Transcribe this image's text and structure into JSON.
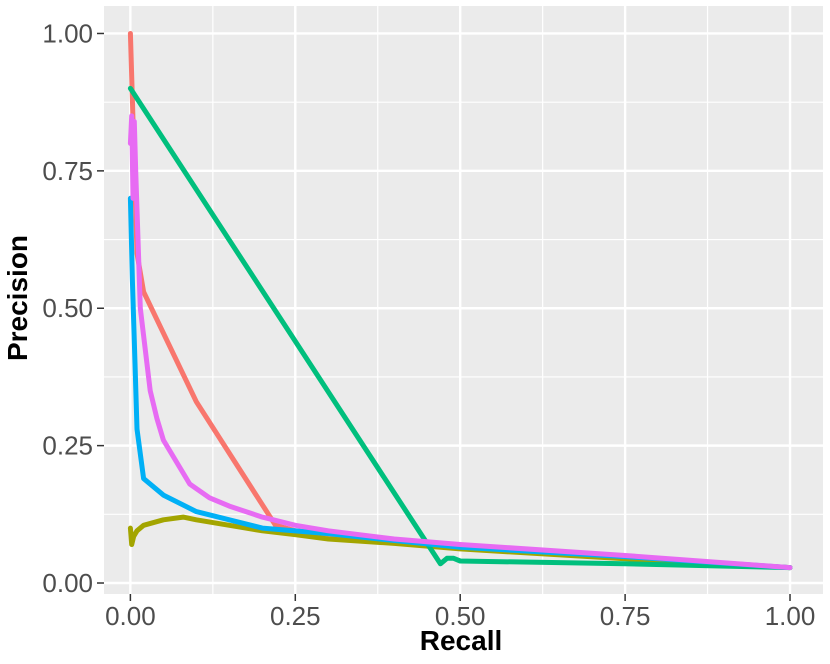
{
  "chart_data": {
    "type": "line",
    "title": "",
    "xlabel": "Recall",
    "ylabel": "Precision",
    "xlim": [
      -0.04,
      1.05
    ],
    "ylim": [
      -0.02,
      1.05
    ],
    "grid": true,
    "legend": "none",
    "panel_background": "#ebebeb",
    "grid_color": "#ffffff",
    "x_ticks": [
      {
        "value": 0,
        "label": "0.00"
      },
      {
        "value": 0.25,
        "label": "0.25"
      },
      {
        "value": 0.5,
        "label": "0.50"
      },
      {
        "value": 0.75,
        "label": "0.75"
      },
      {
        "value": 1.0,
        "label": "1.00"
      }
    ],
    "y_ticks": [
      {
        "value": 0,
        "label": "0.00"
      },
      {
        "value": 0.25,
        "label": "0.25"
      },
      {
        "value": 0.5,
        "label": "0.50"
      },
      {
        "value": 0.75,
        "label": "0.75"
      },
      {
        "value": 1.0,
        "label": "1.00"
      }
    ],
    "x_minor": [
      0.125,
      0.375,
      0.625,
      0.875
    ],
    "y_minor": [
      0.125,
      0.375,
      0.625,
      0.875
    ],
    "series": [
      {
        "color": "#f8766d",
        "x": [
          0.0,
          0.005,
          0.01,
          0.02,
          0.1,
          0.22,
          0.25,
          0.5,
          0.75,
          1.0
        ],
        "y": [
          1.0,
          0.8,
          0.6,
          0.53,
          0.33,
          0.105,
          0.095,
          0.065,
          0.045,
          0.028
        ]
      },
      {
        "color": "#a3a500",
        "x": [
          0.0,
          0.002,
          0.005,
          0.01,
          0.02,
          0.05,
          0.08,
          0.1,
          0.15,
          0.2,
          0.25,
          0.3,
          0.4,
          0.5,
          0.75,
          1.0
        ],
        "y": [
          0.1,
          0.07,
          0.085,
          0.095,
          0.105,
          0.115,
          0.12,
          0.115,
          0.105,
          0.095,
          0.088,
          0.08,
          0.072,
          0.062,
          0.044,
          0.028
        ]
      },
      {
        "color": "#00bf7d",
        "x": [
          0.0,
          0.47,
          0.48,
          0.49,
          0.5,
          0.75,
          1.0
        ],
        "y": [
          0.9,
          0.035,
          0.045,
          0.045,
          0.04,
          0.035,
          0.028
        ]
      },
      {
        "color": "#00b0f6",
        "x": [
          0.0,
          0.003,
          0.007,
          0.01,
          0.02,
          0.03,
          0.05,
          0.1,
          0.15,
          0.2,
          0.3,
          0.5,
          0.75,
          1.0
        ],
        "y": [
          0.7,
          0.55,
          0.4,
          0.28,
          0.19,
          0.18,
          0.16,
          0.13,
          0.115,
          0.1,
          0.09,
          0.065,
          0.048,
          0.028
        ]
      },
      {
        "color": "#e76bf3",
        "x": [
          0.0,
          0.002,
          0.004,
          0.006,
          0.008,
          0.01,
          0.015,
          0.02,
          0.03,
          0.04,
          0.05,
          0.07,
          0.09,
          0.12,
          0.15,
          0.2,
          0.25,
          0.3,
          0.4,
          0.5,
          0.75,
          1.0
        ],
        "y": [
          0.8,
          0.85,
          0.7,
          0.84,
          0.75,
          0.68,
          0.5,
          0.45,
          0.35,
          0.3,
          0.26,
          0.22,
          0.18,
          0.155,
          0.14,
          0.12,
          0.105,
          0.095,
          0.08,
          0.07,
          0.05,
          0.028
        ]
      }
    ]
  }
}
